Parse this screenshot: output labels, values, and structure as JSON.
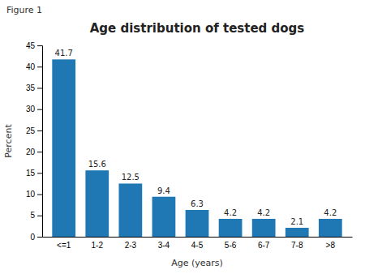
{
  "chart_data": {
    "type": "bar",
    "title": "Age distribution of tested dogs",
    "annotations": [
      "Figure 1"
    ],
    "xlabel": "Age (years)",
    "ylabel": "Percent",
    "categories": [
      "<=1",
      "1-2",
      "2-3",
      "3-4",
      "4-5",
      "5-6",
      "6-7",
      "7-8",
      ">8"
    ],
    "values": [
      41.7,
      15.6,
      12.5,
      9.4,
      6.3,
      4.2,
      4.2,
      2.1,
      4.2
    ],
    "ylim": [
      0,
      45
    ],
    "yticks": [
      0,
      5,
      10,
      15,
      20,
      25,
      30,
      35,
      40,
      45
    ],
    "grid": false,
    "data_labels": true
  }
}
